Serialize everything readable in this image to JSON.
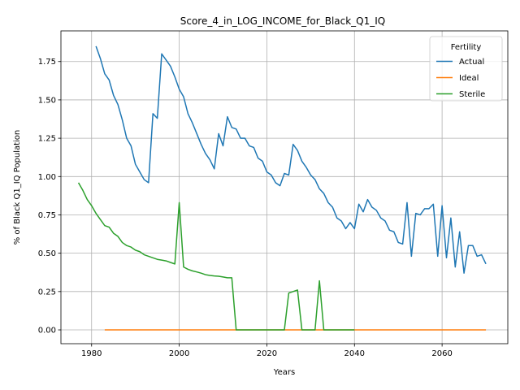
{
  "chart_data": {
    "type": "line",
    "title": "Score_4_in_LOG_INCOME_for_Black_Q1_IQ",
    "xlabel": "Years",
    "ylabel": "% of Black Q1_IQ Population",
    "xlim": [
      1973,
      2075
    ],
    "ylim": [
      -0.09,
      1.95
    ],
    "xticks": [
      1980,
      2000,
      2020,
      2040,
      2060
    ],
    "yticks": [
      0.0,
      0.25,
      0.5,
      0.75,
      1.0,
      1.25,
      1.5,
      1.75
    ],
    "ytick_labels": [
      "0.00",
      "0.25",
      "0.50",
      "0.75",
      "1.00",
      "1.25",
      "1.50",
      "1.75"
    ],
    "grid": true,
    "legend": {
      "title": "Fertility",
      "position": "top-right"
    },
    "series": [
      {
        "name": "Actual",
        "color": "#1f77b4",
        "x": [
          1981,
          1982,
          1983,
          1984,
          1985,
          1986,
          1987,
          1988,
          1989,
          1990,
          1991,
          1992,
          1993,
          1994,
          1995,
          1996,
          1997,
          1998,
          1999,
          2000,
          2001,
          2002,
          2003,
          2004,
          2005,
          2006,
          2007,
          2008,
          2009,
          2010,
          2011,
          2012,
          2013,
          2014,
          2015,
          2016,
          2017,
          2018,
          2019,
          2020,
          2021,
          2022,
          2023,
          2024,
          2025,
          2026,
          2027,
          2028,
          2029,
          2030,
          2031,
          2032,
          2033,
          2034,
          2035,
          2036,
          2037,
          2038,
          2039,
          2040,
          2041,
          2042,
          2043,
          2044,
          2045,
          2046,
          2047,
          2048,
          2049,
          2050,
          2051,
          2052,
          2053,
          2054,
          2055,
          2056,
          2057,
          2058,
          2059,
          2060,
          2061,
          2062,
          2063,
          2064,
          2065,
          2066,
          2067,
          2068,
          2069,
          2070
        ],
        "values": [
          1.85,
          1.77,
          1.67,
          1.63,
          1.53,
          1.47,
          1.37,
          1.25,
          1.2,
          1.08,
          1.03,
          0.98,
          0.96,
          1.41,
          1.38,
          1.8,
          1.76,
          1.72,
          1.65,
          1.57,
          1.52,
          1.41,
          1.35,
          1.28,
          1.21,
          1.15,
          1.11,
          1.05,
          1.28,
          1.2,
          1.39,
          1.32,
          1.31,
          1.25,
          1.25,
          1.2,
          1.19,
          1.12,
          1.1,
          1.03,
          1.01,
          0.96,
          0.94,
          1.02,
          1.01,
          1.21,
          1.17,
          1.1,
          1.06,
          1.01,
          0.98,
          0.92,
          0.89,
          0.83,
          0.8,
          0.73,
          0.71,
          0.66,
          0.7,
          0.66,
          0.82,
          0.77,
          0.85,
          0.8,
          0.78,
          0.73,
          0.71,
          0.65,
          0.64,
          0.57,
          0.56,
          0.83,
          0.48,
          0.76,
          0.75,
          0.79,
          0.79,
          0.82,
          0.48,
          0.81,
          0.47,
          0.73,
          0.41,
          0.64,
          0.37,
          0.55,
          0.55,
          0.48,
          0.49,
          0.43
        ]
      },
      {
        "name": "Ideal",
        "color": "#ff7f0e",
        "x": [
          1983,
          2070
        ],
        "values": [
          0.0,
          0.0
        ]
      },
      {
        "name": "Sterile",
        "color": "#2ca02c",
        "x": [
          1977,
          1978,
          1979,
          1980,
          1981,
          1982,
          1983,
          1984,
          1985,
          1986,
          1987,
          1988,
          1989,
          1990,
          1991,
          1992,
          1993,
          1994,
          1995,
          1996,
          1997,
          1998,
          1999,
          2000,
          2001,
          2002,
          2003,
          2004,
          2005,
          2006,
          2007,
          2008,
          2009,
          2010,
          2011,
          2012,
          2013,
          2014,
          2015,
          2016,
          2017,
          2018,
          2019,
          2020,
          2021,
          2022,
          2023,
          2024,
          2025,
          2026,
          2027,
          2028,
          2029,
          2030,
          2031,
          2032,
          2033,
          2034,
          2035,
          2036,
          2037,
          2038,
          2039,
          2040
        ],
        "values": [
          0.96,
          0.91,
          0.85,
          0.81,
          0.76,
          0.72,
          0.68,
          0.67,
          0.63,
          0.61,
          0.57,
          0.55,
          0.54,
          0.52,
          0.51,
          0.49,
          0.48,
          0.47,
          0.46,
          0.455,
          0.45,
          0.44,
          0.43,
          0.83,
          0.41,
          0.395,
          0.385,
          0.378,
          0.37,
          0.36,
          0.355,
          0.352,
          0.35,
          0.345,
          0.34,
          0.34,
          0.0,
          0.0,
          0.0,
          0.0,
          0.0,
          0.0,
          0.0,
          0.0,
          0.0,
          0.0,
          0.0,
          0.0,
          0.24,
          0.25,
          0.26,
          0.0,
          0.0,
          0.0,
          0.0,
          0.32,
          0.0,
          0.0,
          0.0,
          0.0,
          0.0,
          0.0,
          0.0,
          0.0
        ]
      }
    ]
  }
}
